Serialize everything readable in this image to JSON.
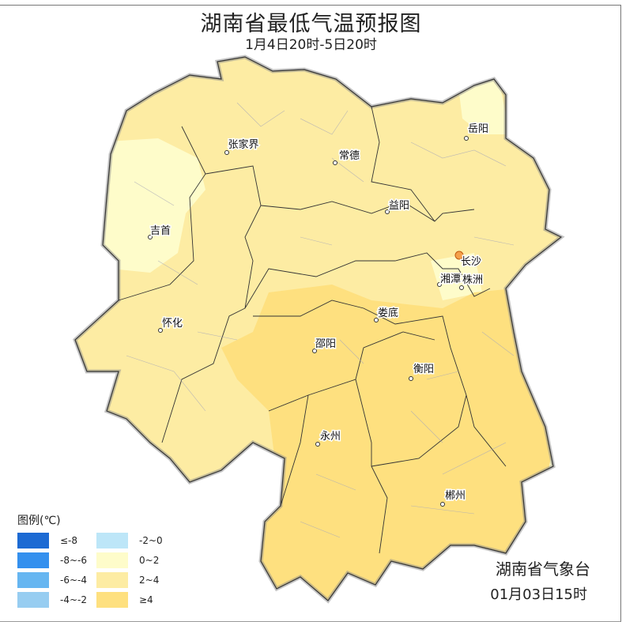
{
  "header": {
    "title": "湖南省最低气温预报图",
    "subtitle": "1月4日20时-5日20时"
  },
  "map": {
    "fill_colors": {
      "base": "#fdeca3",
      "cool": "#fefcca",
      "warm": "#fee07f"
    },
    "cities": [
      {
        "name": "岳阳"
      },
      {
        "name": "张家界"
      },
      {
        "name": "常德"
      },
      {
        "name": "益阳"
      },
      {
        "name": "吉首"
      },
      {
        "name": "长沙",
        "capital": true
      },
      {
        "name": "湘潭"
      },
      {
        "name": "株洲"
      },
      {
        "name": "娄底"
      },
      {
        "name": "怀化"
      },
      {
        "name": "邵阳"
      },
      {
        "name": "衡阳"
      },
      {
        "name": "永州"
      },
      {
        "name": "郴州"
      }
    ]
  },
  "legend": {
    "title": "图例(℃)",
    "items": [
      {
        "label": "≤-8",
        "color": "#1c6ad3"
      },
      {
        "label": "-2~0",
        "color": "#bde6f8"
      },
      {
        "label": "-8~-6",
        "color": "#3490ee"
      },
      {
        "label": "0~2",
        "color": "#fefcca"
      },
      {
        "label": "-6~-4",
        "color": "#66b6f1"
      },
      {
        "label": "2~4",
        "color": "#fdeca3"
      },
      {
        "label": "-4~-2",
        "color": "#97cdf1"
      },
      {
        "label": "≥4",
        "color": "#fee07f"
      }
    ]
  },
  "footer": {
    "issuer": "湖南省气象台",
    "issue_time": "01月03日15时"
  }
}
